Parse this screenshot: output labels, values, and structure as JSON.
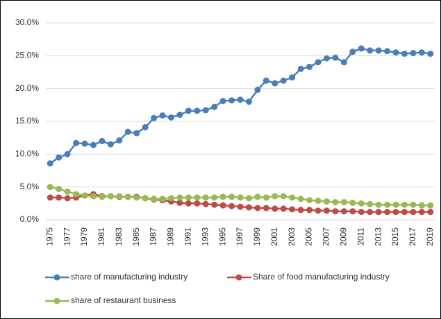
{
  "chart_data": {
    "type": "line",
    "categories": [
      "1975",
      null,
      "1977",
      null,
      "1979",
      null,
      "1981",
      null,
      "1983",
      null,
      "1985",
      null,
      "1987",
      null,
      "1989",
      null,
      "1991",
      null,
      "1993",
      null,
      "1995",
      null,
      "1997",
      null,
      "1999",
      null,
      "2001",
      null,
      "2003",
      null,
      "2005",
      null,
      "2007",
      null,
      "2009",
      null,
      "2011",
      null,
      "2013",
      null,
      "2015",
      null,
      "2017",
      null,
      "2019"
    ],
    "series": [
      {
        "name": "share of manufacturing industry",
        "color": "#4a7ebb",
        "values": [
          8.6,
          9.5,
          10.0,
          11.7,
          11.6,
          11.4,
          12.0,
          11.5,
          12.1,
          13.4,
          13.2,
          14.1,
          15.5,
          15.9,
          15.6,
          16.0,
          16.6,
          16.6,
          16.7,
          17.2,
          18.1,
          18.2,
          18.3,
          18.0,
          19.8,
          21.2,
          20.8,
          21.2,
          21.7,
          23.0,
          23.3,
          24.0,
          24.6,
          24.7,
          24.0,
          25.6,
          26.1,
          25.8,
          25.8,
          25.7,
          25.5,
          25.3,
          25.4,
          25.5,
          25.3
        ]
      },
      {
        "name": "Share of food manufacturing industry",
        "color": "#be4b48",
        "values": [
          3.4,
          3.4,
          3.3,
          3.4,
          3.7,
          3.9,
          3.6,
          3.6,
          3.5,
          3.5,
          3.5,
          3.3,
          3.1,
          3.0,
          2.8,
          2.6,
          2.5,
          2.5,
          2.4,
          2.3,
          2.2,
          2.1,
          2.0,
          1.9,
          1.8,
          1.8,
          1.7,
          1.7,
          1.6,
          1.5,
          1.5,
          1.4,
          1.4,
          1.3,
          1.3,
          1.3,
          1.2,
          1.2,
          1.2,
          1.2,
          1.2,
          1.2,
          1.2,
          1.2,
          1.2
        ]
      },
      {
        "name": "share of restaurant business",
        "color": "#98b954",
        "values": [
          5.0,
          4.7,
          4.3,
          3.9,
          3.7,
          3.6,
          3.5,
          3.6,
          3.6,
          3.5,
          3.4,
          3.3,
          3.2,
          3.2,
          3.3,
          3.4,
          3.4,
          3.4,
          3.4,
          3.4,
          3.5,
          3.5,
          3.4,
          3.3,
          3.5,
          3.4,
          3.6,
          3.6,
          3.4,
          3.2,
          3.0,
          2.9,
          2.8,
          2.7,
          2.7,
          2.6,
          2.5,
          2.4,
          2.3,
          2.3,
          2.3,
          2.3,
          2.3,
          2.2,
          2.2
        ]
      }
    ],
    "ylim": [
      0,
      30
    ],
    "yticks": [
      {
        "value": 0,
        "label": "0.0%"
      },
      {
        "value": 5,
        "label": "5.0%"
      },
      {
        "value": 10,
        "label": "10.0%"
      },
      {
        "value": 15,
        "label": "15.0%"
      },
      {
        "value": 20,
        "label": "20.0%"
      },
      {
        "value": 25,
        "label": "25.0%"
      },
      {
        "value": 30,
        "label": "30.0%"
      }
    ],
    "grid": true
  }
}
